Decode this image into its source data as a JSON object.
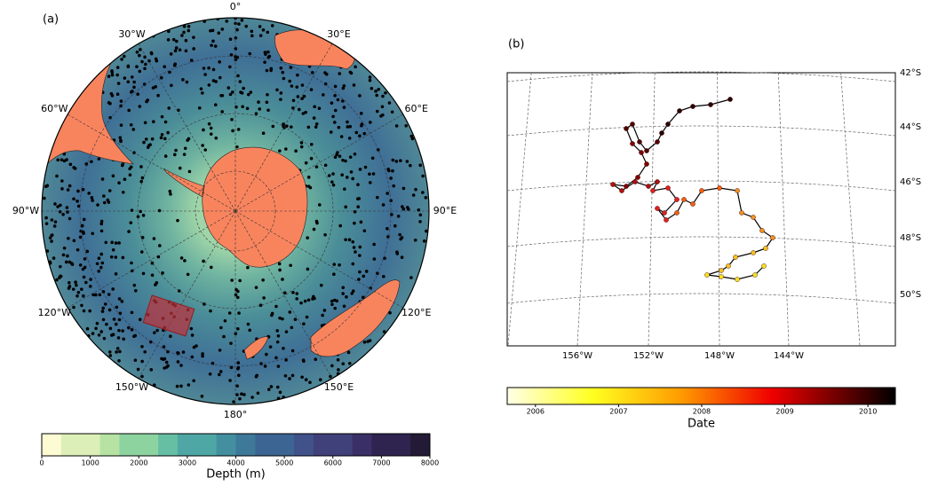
{
  "panel_a": {
    "label": "(a)",
    "longitudes": [
      "0°",
      "30°E",
      "60°E",
      "90°E",
      "120°E",
      "150°E",
      "180°",
      "150°W",
      "120°W",
      "90°W",
      "60°W",
      "30°W"
    ],
    "colorbar": {
      "label": "Depth (m)",
      "lim": [
        0,
        8000
      ],
      "ticks": [
        0,
        1000,
        2000,
        3000,
        4000,
        5000,
        6000,
        7000,
        8000
      ]
    }
  },
  "panel_b": {
    "label": "(b)",
    "latitudes": [
      "42°S",
      "44°S",
      "46°S",
      "48°S",
      "50°S"
    ],
    "longitudes": [
      "156°W",
      "152°W",
      "148°W",
      "144°W"
    ],
    "colorbar": {
      "label": "Date",
      "lim": [
        2005.66,
        2010.33
      ],
      "ticks": [
        2006,
        2007,
        2008,
        2009,
        2010
      ]
    }
  }
}
